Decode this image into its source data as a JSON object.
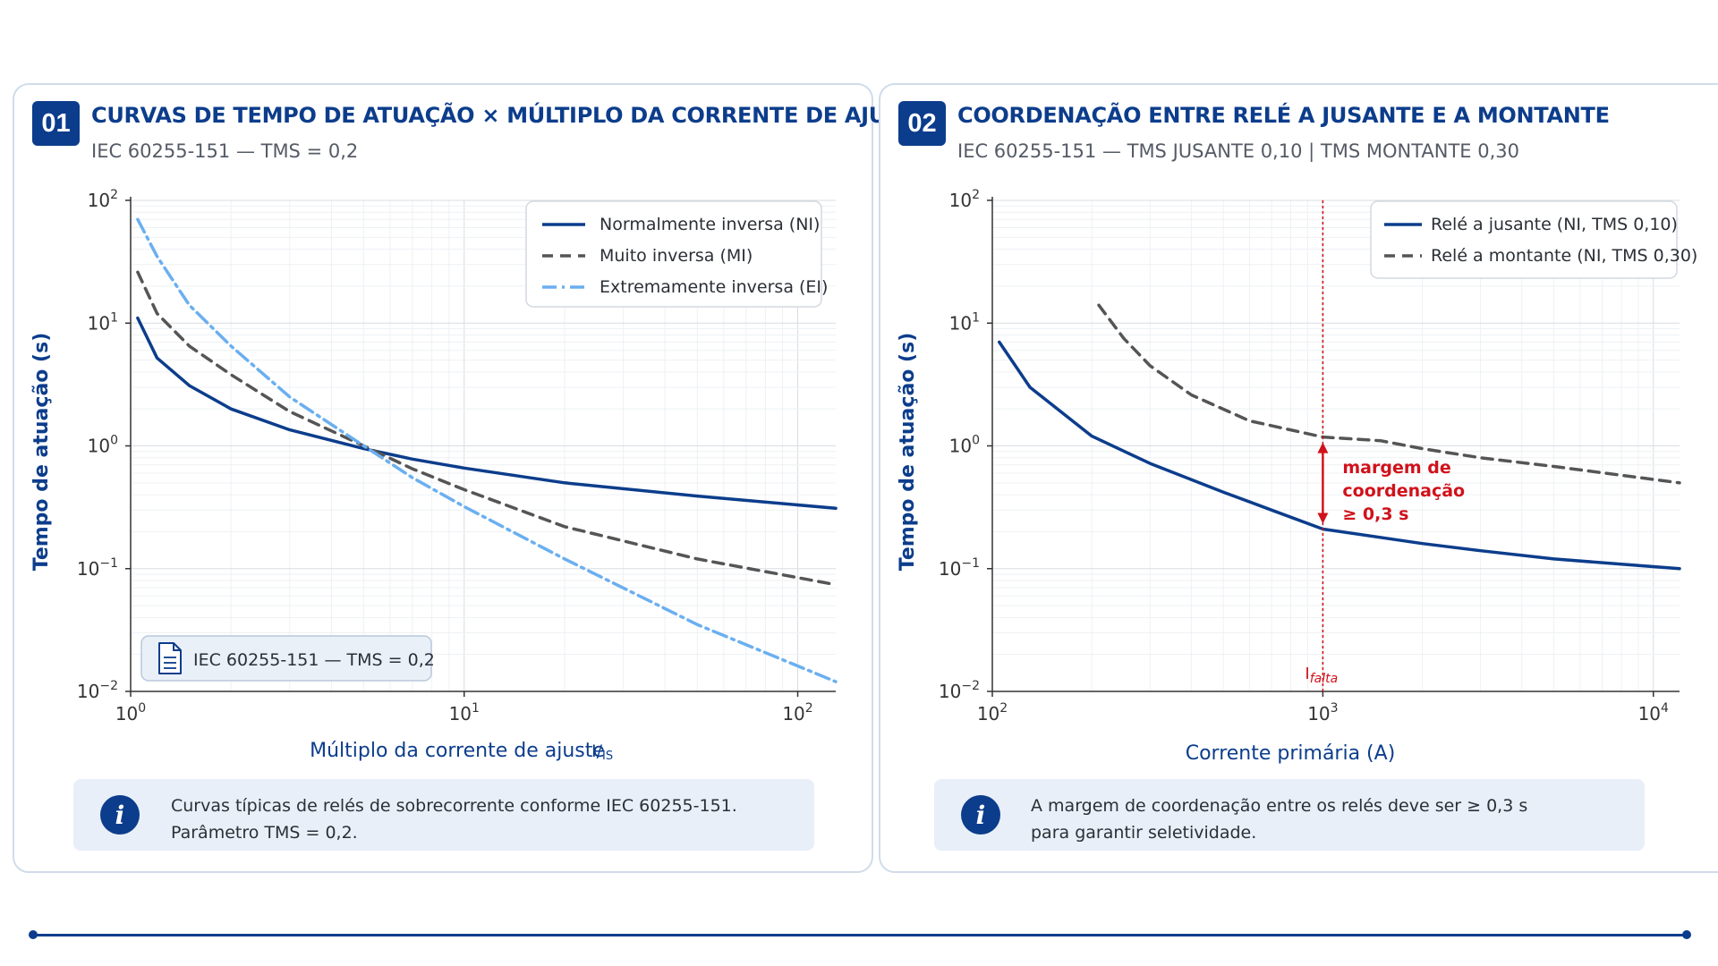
{
  "panels": [
    {
      "badge": "01",
      "title": "CURVAS DE TEMPO DE ATUAÇÃO × MÚLTIPLO DA CORRENTE DE AJUSTE",
      "subtitle": "IEC 60255-151 — TMS = 0,2",
      "note_box": "IEC 60255-151 — TMS = 0,2",
      "info": {
        "line1": "Curvas típicas de relés de sobrecorrente conforme IEC 60255-151.",
        "line2": "Parâmetro TMS = 0,2."
      }
    },
    {
      "badge": "02",
      "title": "COORDENAÇÃO ENTRE RELÉ A JUSANTE E A MONTANTE",
      "subtitle": "IEC 60255-151 — TMS JUSANTE 0,10 | TMS MONTANTE 0,30",
      "info": {
        "line1": "A margem de coordenação entre os relés deve ser ≥ 0,3 s",
        "line2": "para garantir seletividade."
      }
    }
  ],
  "chart_data": [
    {
      "type": "line",
      "title": "CURVAS DE TEMPO DE ATUAÇÃO × MÚLTIPLO DA CORRENTE DE AJUSTE",
      "subtitle": "IEC 60255-151 — TMS = 0,2",
      "xlabel": "Múltiplo da corrente de ajuste",
      "xlabel_symbol": "I/Is",
      "ylabel": "Tempo de atuação (s)",
      "xscale": "log",
      "yscale": "log",
      "xlim": [
        1,
        130
      ],
      "ylim": [
        0.01,
        100
      ],
      "xticks": [
        "10^0",
        "10^1",
        "10^2"
      ],
      "yticks": [
        "10^-2",
        "10^-1",
        "10^0",
        "10^1",
        "10^2"
      ],
      "grid": true,
      "legend_position": "top-right",
      "series": [
        {
          "name": "Normalmente inversa (NI)",
          "style": "solid",
          "color": "#0c3d8c",
          "points": [
            [
              1.05,
              11
            ],
            [
              1.2,
              5.2
            ],
            [
              1.5,
              3.1
            ],
            [
              2,
              2.0
            ],
            [
              3,
              1.35
            ],
            [
              5,
              0.95
            ],
            [
              7,
              0.78
            ],
            [
              10,
              0.66
            ],
            [
              20,
              0.5
            ],
            [
              50,
              0.39
            ],
            [
              130,
              0.31
            ]
          ]
        },
        {
          "name": "Muito inversa (MI)",
          "style": "dashed",
          "color": "#555555",
          "points": [
            [
              1.05,
              26
            ],
            [
              1.2,
              12
            ],
            [
              1.5,
              6.5
            ],
            [
              2,
              3.8
            ],
            [
              3,
              1.9
            ],
            [
              5,
              1.0
            ],
            [
              7,
              0.65
            ],
            [
              10,
              0.44
            ],
            [
              20,
              0.22
            ],
            [
              50,
              0.12
            ],
            [
              130,
              0.074
            ]
          ]
        },
        {
          "name": "Extremamente inversa (EI)",
          "style": "dashdot",
          "color": "#6aaff0",
          "points": [
            [
              1.05,
              70
            ],
            [
              1.2,
              35
            ],
            [
              1.5,
              14
            ],
            [
              2,
              6.5
            ],
            [
              3,
              2.5
            ],
            [
              5,
              1.0
            ],
            [
              7,
              0.55
            ],
            [
              10,
              0.32
            ],
            [
              20,
              0.12
            ],
            [
              50,
              0.035
            ],
            [
              130,
              0.012
            ]
          ]
        }
      ]
    },
    {
      "type": "line",
      "title": "COORDENAÇÃO ENTRE RELÉ A JUSANTE E A MONTANTE",
      "subtitle": "IEC 60255-151 — TMS JUSANTE 0,10 | TMS MONTANTE 0,30",
      "xlabel": "Corrente primária (A)",
      "ylabel": "Tempo de atuação (s)",
      "xscale": "log",
      "yscale": "log",
      "xlim": [
        100,
        12000
      ],
      "ylim": [
        0.01,
        100
      ],
      "xticks": [
        "10^2",
        "10^3",
        "10^4"
      ],
      "yticks": [
        "10^-2",
        "10^-1",
        "10^0",
        "10^1",
        "10^2"
      ],
      "grid": true,
      "legend_position": "top-right",
      "series": [
        {
          "name": "Relé a jusante (NI, TMS 0,10)",
          "style": "solid",
          "color": "#0c3d8c",
          "points": [
            [
              105,
              7.0
            ],
            [
              130,
              3.0
            ],
            [
              200,
              1.2
            ],
            [
              300,
              0.72
            ],
            [
              500,
              0.42
            ],
            [
              700,
              0.3
            ],
            [
              1000,
              0.21
            ],
            [
              2000,
              0.16
            ],
            [
              3000,
              0.14
            ],
            [
              5000,
              0.12
            ],
            [
              12000,
              0.1
            ]
          ]
        },
        {
          "name": "Relé a montante (NI, TMS 0,30)",
          "style": "dashed",
          "color": "#555555",
          "points": [
            [
              210,
              14
            ],
            [
              250,
              7.5
            ],
            [
              300,
              4.5
            ],
            [
              400,
              2.6
            ],
            [
              600,
              1.6
            ],
            [
              1000,
              1.18
            ],
            [
              1500,
              1.1
            ],
            [
              2000,
              0.95
            ],
            [
              3000,
              0.8
            ],
            [
              5000,
              0.68
            ],
            [
              12000,
              0.5
            ]
          ]
        }
      ],
      "annotations": {
        "fault_current": 1000,
        "fault_label_main": "I",
        "fault_label_sub": "falta",
        "margin_label": [
          "margem de",
          "coordenação",
          "≥ 0,3 s"
        ],
        "margin_from": 0.21,
        "margin_to": 1.18
      }
    }
  ]
}
